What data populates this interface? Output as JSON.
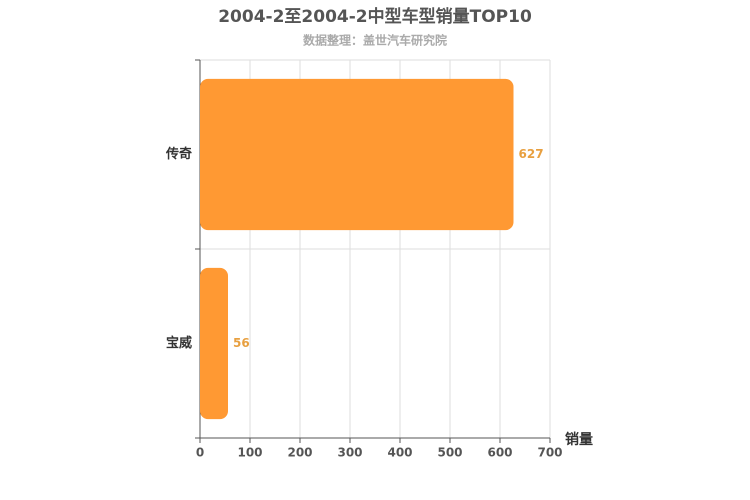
{
  "chart_data": {
    "type": "bar",
    "orientation": "horizontal",
    "title": "2004-2至2004-2中型车型销量TOP10",
    "subtitle": "数据整理：盖世汽车研究院",
    "x_label": "销量",
    "categories": [
      "传奇",
      "宝威"
    ],
    "values": [
      627,
      56
    ],
    "color": "#ff9933",
    "label_color": "#e8a040",
    "xlim": [
      0,
      700
    ],
    "xticks": [
      0,
      100,
      200,
      300,
      400,
      500,
      600,
      700
    ],
    "grid": true
  }
}
